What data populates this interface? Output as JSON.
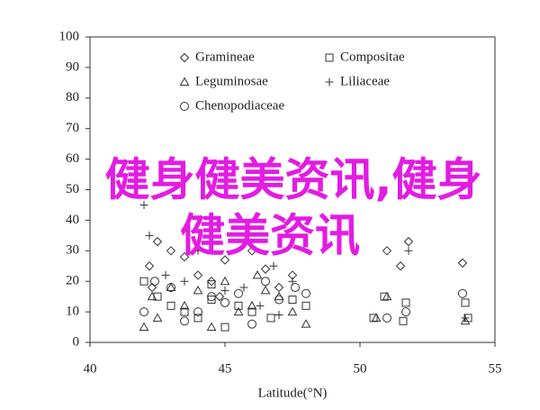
{
  "chart_data": {
    "type": "scatter",
    "x_label": "Latitude(°N)",
    "xlim": [
      40,
      55
    ],
    "xticks": [
      40,
      45,
      50,
      55
    ],
    "ylim": [
      0,
      100
    ],
    "yticks": [
      0,
      10,
      20,
      30,
      40,
      50,
      60,
      70,
      80,
      90,
      100
    ],
    "legend": "top-left",
    "overlay_text": [
      "健身健美资讯,健身",
      "健美资讯"
    ],
    "series": [
      {
        "name": "Gramineae",
        "marker": "diamond",
        "color": "#333333",
        "x": [
          42.2,
          42.5,
          43,
          43.5,
          44,
          44.5,
          45,
          46,
          46.5,
          47,
          47.5,
          51.5,
          51.8,
          53.8,
          51,
          42.3,
          44.8
        ],
        "values": [
          25,
          33,
          30,
          28,
          22,
          20,
          27,
          30,
          24,
          18,
          22,
          25,
          33,
          26,
          30,
          18,
          15
        ]
      },
      {
        "name": "Compositae",
        "marker": "square",
        "color": "#333333",
        "x": [
          42,
          42.5,
          43,
          43.5,
          44,
          44.5,
          45,
          45.5,
          46,
          46.7,
          47.5,
          48,
          50.9,
          51.7,
          53.9,
          50.5,
          51.6,
          54,
          44.5
        ],
        "values": [
          20,
          15,
          12,
          10,
          8,
          14,
          5,
          12,
          10,
          8,
          14,
          12,
          15,
          13,
          13,
          8,
          7,
          8,
          19
        ]
      },
      {
        "name": "Leguminosae",
        "marker": "triangle",
        "color": "#333333",
        "x": [
          42,
          42.3,
          42.5,
          43,
          43.5,
          44,
          44.5,
          45,
          45.5,
          46,
          46.5,
          47,
          47.5,
          48,
          50.6,
          51,
          53.9,
          46.2
        ],
        "values": [
          5,
          15,
          8,
          18,
          12,
          17,
          5,
          20,
          10,
          12,
          17,
          15,
          10,
          6,
          8,
          15,
          7,
          22
        ]
      },
      {
        "name": "Liliaceae",
        "marker": "plus",
        "color": "#333333",
        "x": [
          42,
          42.2,
          42.8,
          43.5,
          44,
          45,
          45.7,
          46.3,
          47,
          47.5,
          51.8,
          53.9,
          46.8
        ],
        "values": [
          45,
          35,
          22,
          20,
          30,
          17,
          18,
          12,
          9,
          20,
          30,
          8,
          25
        ]
      },
      {
        "name": "Chenopodiaceae",
        "marker": "circle",
        "color": "#333333",
        "x": [
          42,
          42.4,
          43,
          43.5,
          44,
          44.5,
          45,
          45.5,
          46,
          46.5,
          47,
          47.6,
          48,
          51,
          53.8,
          51.7
        ],
        "values": [
          10,
          20,
          18,
          7,
          10,
          15,
          13,
          16,
          6,
          20,
          14,
          18,
          16,
          8,
          16,
          10
        ]
      }
    ]
  }
}
